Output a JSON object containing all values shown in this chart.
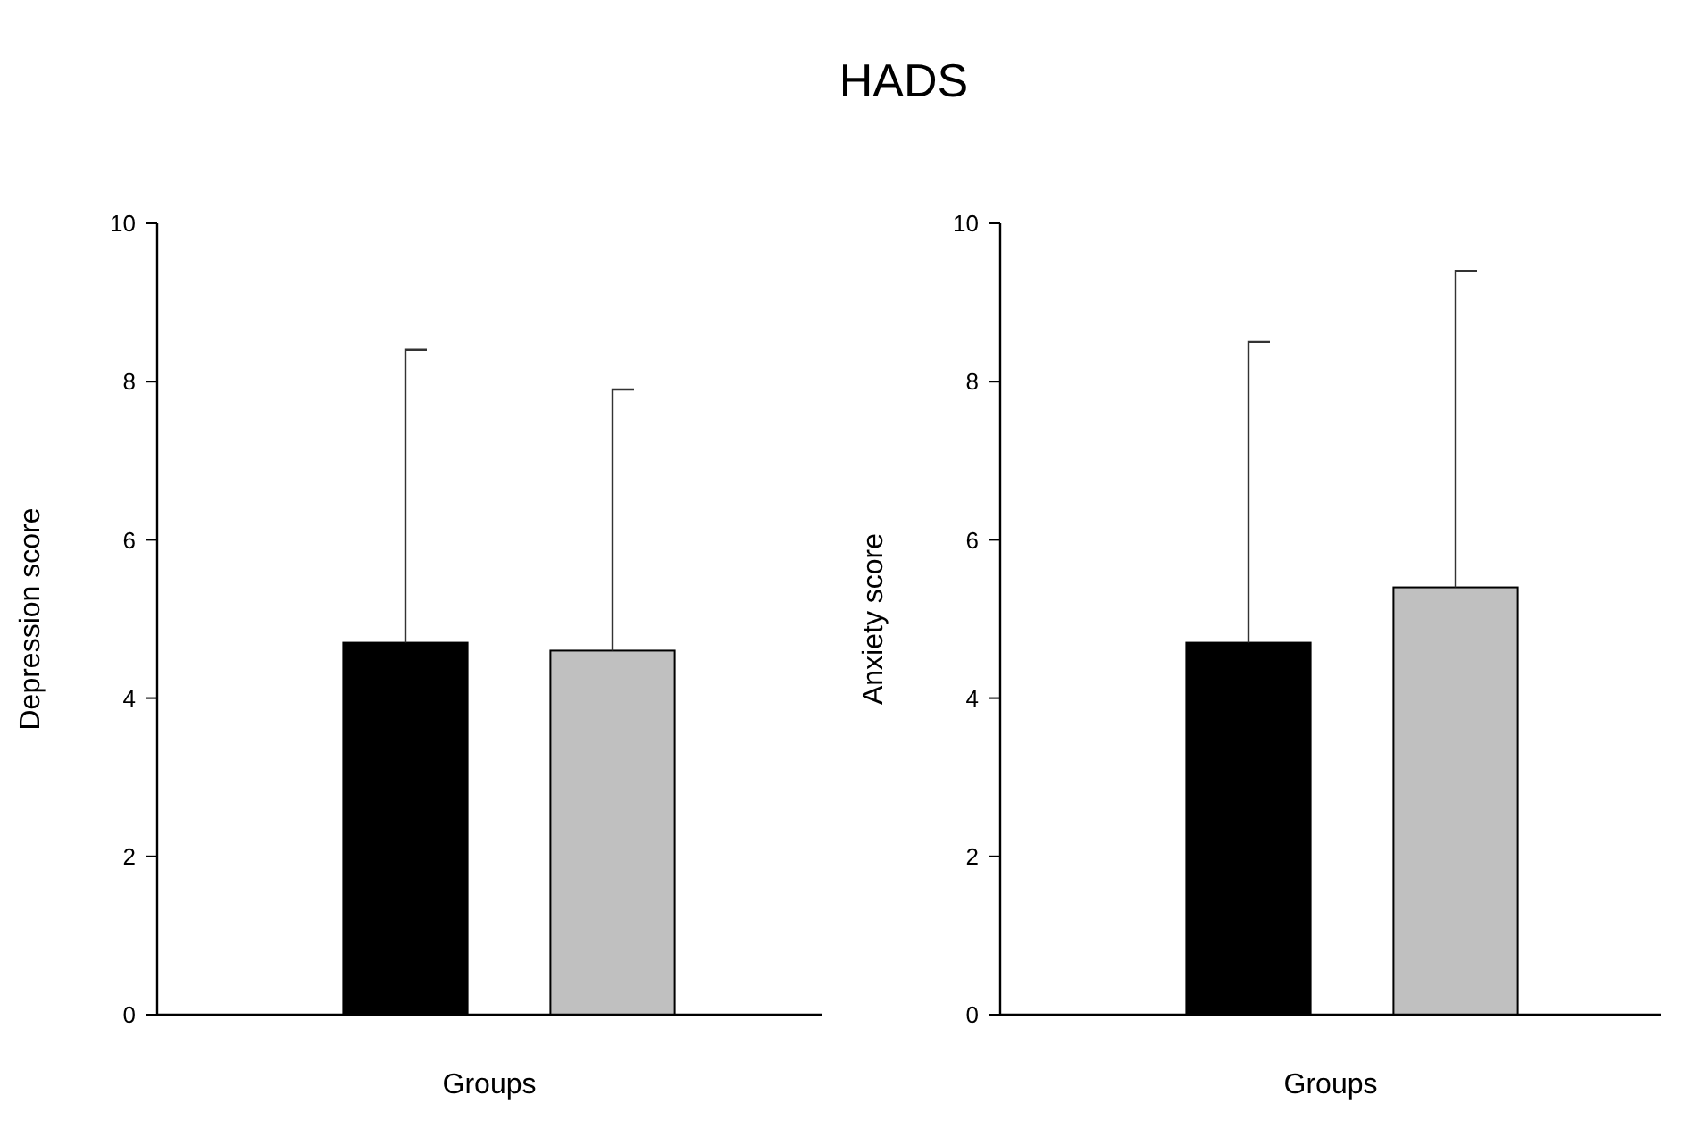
{
  "chart_data": [
    {
      "type": "bar",
      "title": "HADS",
      "xlabel": "Groups",
      "ylabel": "Depression score",
      "categories": [
        null,
        null
      ],
      "values": [
        4.7,
        4.6
      ],
      "colors": [
        "#000000",
        "#c0c0c0"
      ],
      "errors": [
        [
          4.7,
          8.4
        ],
        [
          4.6,
          7.9
        ]
      ],
      "ylim": [
        0,
        10
      ],
      "yticks": [
        0,
        2,
        4,
        6,
        8,
        10
      ]
    },
    {
      "type": "bar",
      "xlabel": "Groups",
      "ylabel": "Anxiety score",
      "categories": [
        null,
        null
      ],
      "values": [
        4.7,
        5.4
      ],
      "colors": [
        "#000000",
        "#c0c0c0"
      ],
      "errors": [
        [
          4.7,
          8.5
        ],
        [
          5.4,
          9.4
        ]
      ],
      "ylim": [
        0,
        10
      ],
      "yticks": [
        0,
        2,
        4,
        6,
        8,
        10
      ]
    }
  ]
}
